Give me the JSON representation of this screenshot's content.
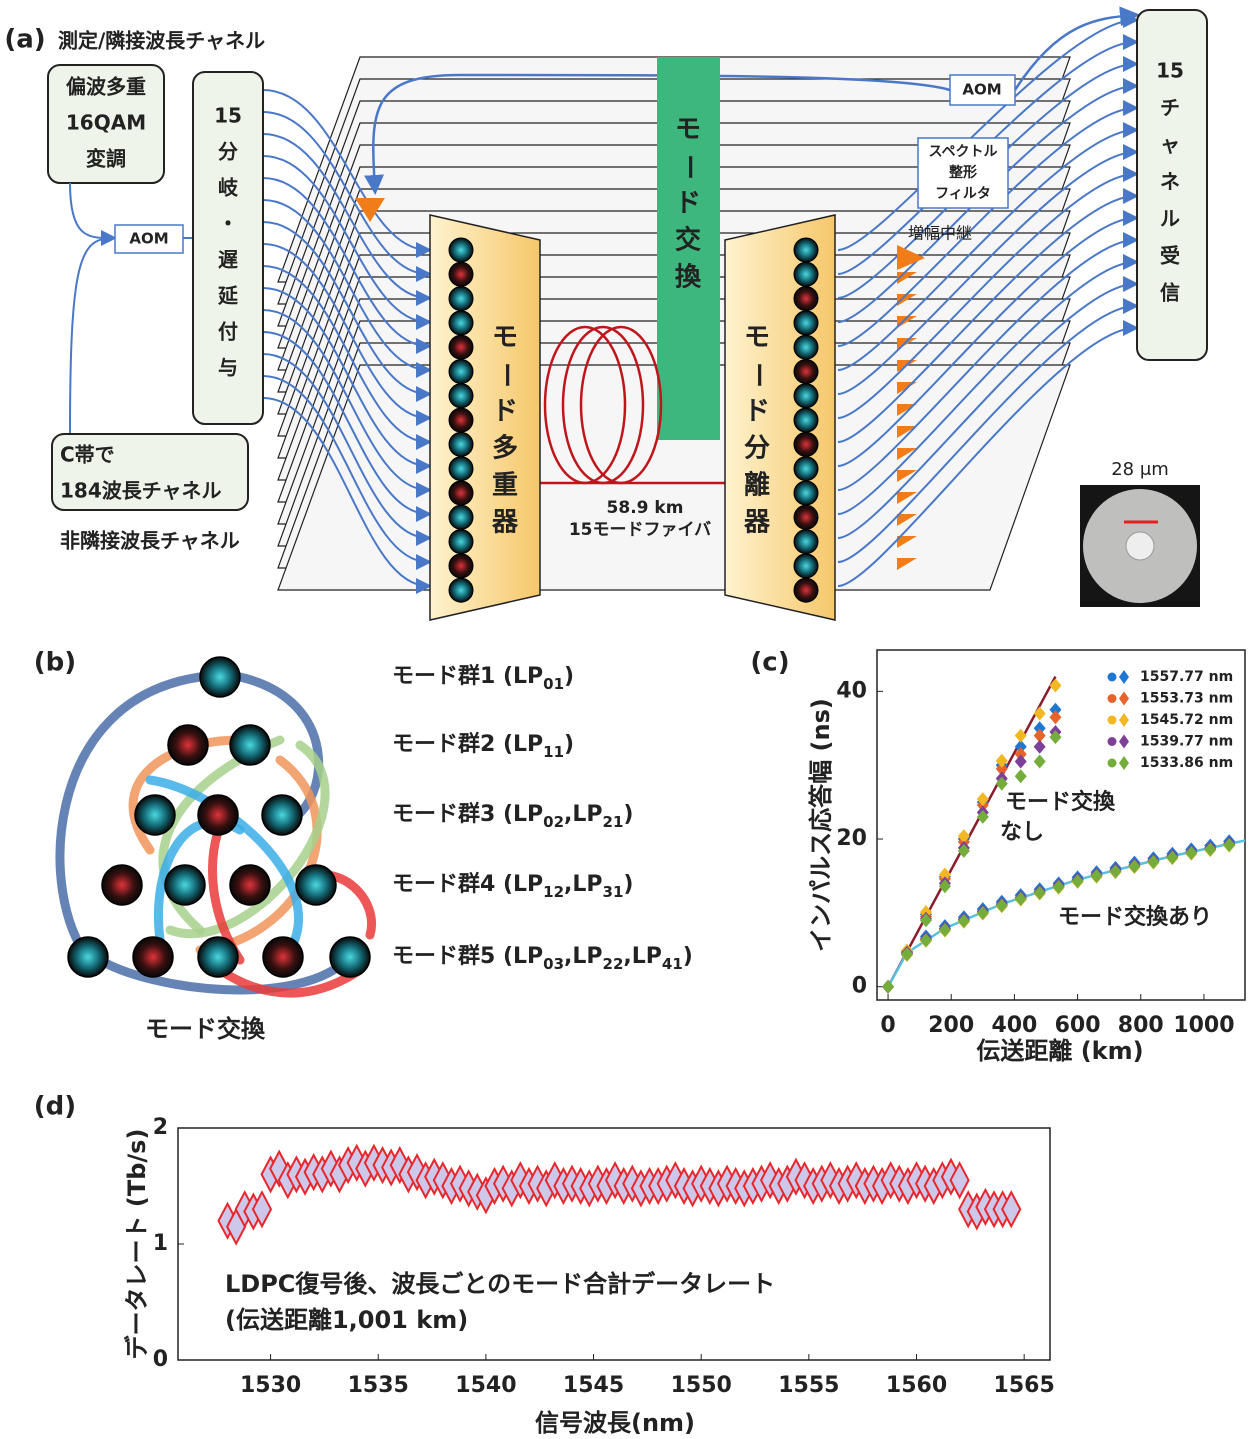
{
  "panel_a": {
    "label": "(a)",
    "adjacent_label": "測定/隣接波長チャネル",
    "modulation": [
      "偏波多重",
      "16QAM",
      "変調"
    ],
    "aom_left": "AOM",
    "source": [
      "C帯で",
      "184波長チャネル"
    ],
    "non_adjacent": "非隣接波長チャネル",
    "splitter": [
      "15",
      "分",
      "岐",
      "・",
      "遅",
      "延",
      "付",
      "与"
    ],
    "mode_exchange": [
      "モ",
      "ー",
      "ド",
      "交",
      "換"
    ],
    "mux": [
      "モ",
      "ー",
      "ド",
      "多",
      "重",
      "器"
    ],
    "demux": [
      "モ",
      "ー",
      "ド",
      "分",
      "離",
      "器"
    ],
    "fiber": [
      "58.9 km",
      "15モードファイバ"
    ],
    "aom_right": "AOM",
    "filter": [
      "スペクトル",
      "整形",
      "フィルタ"
    ],
    "amplifier": "増幅中継",
    "receiver": [
      "15",
      "チ",
      "ャ",
      "ネ",
      "ル",
      "受",
      "信"
    ],
    "core_size": "28 μm"
  },
  "panel_b": {
    "label": "(b)",
    "groups": [
      [
        "モード群1 (LP",
        "01",
        ")"
      ],
      [
        "モード群2 (LP",
        "11",
        ")"
      ],
      [
        "モード群3 (LP",
        "02",
        ",LP",
        "21",
        ")"
      ],
      [
        "モード群4 (LP",
        "12",
        ",LP",
        "31",
        ")"
      ],
      [
        "モード群5 (LP",
        "03",
        ",LP",
        "22",
        ",LP",
        "41",
        ")"
      ]
    ],
    "caption": "モード交換"
  },
  "chart_data": [
    {
      "type": "scatter",
      "panel_label": "(c)",
      "ylabel": "インパルス応答幅 (ns)",
      "xlabel": "伝送距離 (km)",
      "xlim": [
        -35,
        1130
      ],
      "ylim": [
        -1.8,
        45.6
      ],
      "xticks": [
        0,
        200,
        400,
        600,
        800,
        1000
      ],
      "yticks": [
        0,
        20,
        40
      ],
      "x": [
        0,
        60,
        120,
        180,
        240,
        300,
        360,
        420,
        480,
        530,
        60,
        120,
        180,
        240,
        300,
        360,
        420,
        480,
        540,
        600,
        660,
        720,
        780,
        840,
        900,
        960,
        1020,
        1080
      ],
      "series": [
        {
          "name": "1557.77 nm",
          "color": "#1f77d4",
          "values": [
            0,
            4.8,
            9.8,
            14.9,
            20.0,
            25.0,
            30.0,
            32.5,
            35,
            37.5,
            4.8,
            6.8,
            8.2,
            9.4,
            10.5,
            11.5,
            12.4,
            13.2,
            14.0,
            14.8,
            15.5,
            16.1,
            16.8,
            17.4,
            18.0,
            18.6,
            19.1,
            19.7
          ]
        },
        {
          "name": "1553.73 nm",
          "color": "#e8632a",
          "values": [
            0,
            4.6,
            9.5,
            14.6,
            19.6,
            24.6,
            29.5,
            31.5,
            34,
            36.5,
            4.5,
            6.4,
            7.8,
            9.0,
            10.1,
            11.1,
            12.0,
            12.8,
            13.6,
            14.4,
            15.1,
            15.7,
            16.4,
            17.0,
            17.6,
            18.2,
            18.7,
            19.3
          ]
        },
        {
          "name": "1545.72 nm",
          "color": "#f2b824",
          "values": [
            0,
            4.9,
            10.1,
            15.2,
            20.4,
            25.4,
            30.6,
            34,
            37,
            40.8,
            4.3,
            6.2,
            7.6,
            8.8,
            9.9,
            10.9,
            11.8,
            12.6,
            13.4,
            14.2,
            14.9,
            15.5,
            16.2,
            16.8,
            17.4,
            18.0,
            18.5,
            19.1
          ]
        },
        {
          "name": "1539.77 nm",
          "color": "#7e3f98",
          "values": [
            0,
            4.5,
            9.2,
            14.0,
            18.8,
            23.6,
            28.2,
            30.5,
            32.5,
            34.5,
            4.6,
            6.5,
            7.9,
            9.1,
            10.2,
            11.2,
            12.1,
            12.9,
            13.7,
            14.5,
            15.2,
            15.8,
            16.5,
            17.1,
            17.7,
            18.3,
            18.8,
            19.4
          ]
        },
        {
          "name": "1533.86 nm",
          "color": "#74ad3c",
          "values": [
            0,
            4.4,
            9.0,
            13.6,
            18.4,
            23.0,
            27.5,
            28.5,
            30.5,
            33.8,
            4.4,
            6.3,
            7.7,
            8.9,
            10.0,
            11.0,
            11.9,
            12.7,
            13.5,
            14.3,
            15.0,
            15.6,
            16.3,
            16.9,
            17.5,
            18.1,
            18.6,
            19.2
          ]
        }
      ],
      "fits": [
        {
          "color": "#8b1a2b",
          "x": [
            0,
            530
          ],
          "values": [
            0,
            42
          ]
        },
        {
          "color": "#5bc0de",
          "x": [
            0,
            60,
            180,
            360,
            600,
            900,
            1130
          ],
          "values": [
            0,
            4.6,
            7.9,
            11.2,
            14.5,
            17.7,
            19.8
          ]
        }
      ],
      "annotations": [
        "モード交換",
        "なし",
        "モード交換あり"
      ]
    },
    {
      "type": "scatter",
      "panel_label": "(d)",
      "ylabel": "データレート (Tb/s)",
      "xlabel": "信号波長(nm)",
      "xlim": [
        1525.7,
        1566.2
      ],
      "ylim": [
        0,
        2
      ],
      "xticks": [
        1530,
        1535,
        1540,
        1545,
        1550,
        1555,
        1560,
        1565
      ],
      "yticks": [
        0,
        1,
        2
      ],
      "color": "#e8262b",
      "marker_fill": "#cdc8ea",
      "x": [
        1528,
        1528.4,
        1528.8,
        1529.2,
        1529.6,
        1530,
        1530.4,
        1530.8,
        1531.2,
        1531.6,
        1532,
        1532.4,
        1532.8,
        1533.2,
        1533.6,
        1534,
        1534.4,
        1534.8,
        1535.2,
        1535.6,
        1536,
        1536.4,
        1536.8,
        1537.2,
        1537.6,
        1538,
        1538.4,
        1538.8,
        1539.2,
        1539.6,
        1540,
        1540.4,
        1540.8,
        1541.2,
        1541.6,
        1542,
        1542.4,
        1542.8,
        1543.2,
        1543.6,
        1544,
        1544.4,
        1544.8,
        1545.2,
        1545.6,
        1546,
        1546.4,
        1546.8,
        1547.2,
        1547.6,
        1548,
        1548.4,
        1548.8,
        1549.2,
        1549.6,
        1550,
        1550.4,
        1550.8,
        1551.2,
        1551.6,
        1552,
        1552.4,
        1552.8,
        1553.2,
        1553.6,
        1554,
        1554.4,
        1554.8,
        1555.2,
        1555.6,
        1556,
        1556.4,
        1556.8,
        1557.2,
        1557.6,
        1558,
        1558.4,
        1558.8,
        1559.2,
        1559.6,
        1560,
        1560.4,
        1560.8,
        1561.2,
        1561.6,
        1562,
        1562.4,
        1562.8,
        1563.2,
        1563.6,
        1564,
        1564.4
      ],
      "values": [
        1.2,
        1.15,
        1.3,
        1.28,
        1.3,
        1.6,
        1.65,
        1.55,
        1.6,
        1.58,
        1.62,
        1.6,
        1.65,
        1.6,
        1.68,
        1.7,
        1.65,
        1.7,
        1.68,
        1.66,
        1.68,
        1.6,
        1.62,
        1.55,
        1.58,
        1.55,
        1.5,
        1.52,
        1.48,
        1.45,
        1.42,
        1.5,
        1.52,
        1.48,
        1.55,
        1.5,
        1.52,
        1.48,
        1.55,
        1.5,
        1.52,
        1.5,
        1.48,
        1.52,
        1.5,
        1.55,
        1.5,
        1.52,
        1.48,
        1.5,
        1.5,
        1.52,
        1.55,
        1.5,
        1.48,
        1.52,
        1.5,
        1.48,
        1.52,
        1.5,
        1.48,
        1.5,
        1.52,
        1.55,
        1.5,
        1.52,
        1.58,
        1.55,
        1.5,
        1.52,
        1.55,
        1.5,
        1.52,
        1.55,
        1.5,
        1.52,
        1.5,
        1.55,
        1.52,
        1.5,
        1.55,
        1.52,
        1.5,
        1.55,
        1.58,
        1.55,
        1.3,
        1.28,
        1.32,
        1.3,
        1.3,
        1.3
      ],
      "annotations": [
        "LDPC復号後、波長ごとのモード合計データレート",
        "(伝送距離1,001 km)"
      ]
    }
  ]
}
